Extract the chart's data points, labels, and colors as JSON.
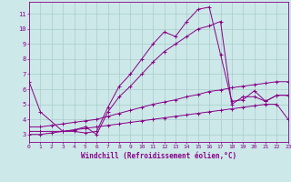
{
  "xlabel": "Windchill (Refroidissement éolien,°C)",
  "bg_color": "#cce8e8",
  "grid_color": "#aacccc",
  "line_color": "#880088",
  "xlim": [
    0,
    23
  ],
  "ylim": [
    2.5,
    11.8
  ],
  "xticks": [
    0,
    1,
    2,
    3,
    4,
    5,
    6,
    7,
    8,
    9,
    10,
    11,
    12,
    13,
    14,
    15,
    16,
    17,
    18,
    19,
    20,
    21,
    22,
    23
  ],
  "yticks": [
    3,
    4,
    5,
    6,
    7,
    8,
    9,
    10,
    11
  ],
  "lines": [
    {
      "x": [
        0,
        1,
        3,
        4,
        5,
        6,
        7,
        8,
        9,
        10,
        11,
        12,
        13,
        14,
        15,
        16,
        17,
        18,
        19,
        20,
        21,
        22,
        23
      ],
      "y": [
        6.5,
        4.5,
        3.2,
        3.2,
        3.1,
        3.2,
        4.8,
        6.2,
        7.0,
        8.0,
        9.0,
        9.8,
        9.5,
        10.5,
        11.3,
        11.45,
        8.3,
        5.2,
        5.3,
        5.9,
        5.2,
        5.6,
        5.6
      ]
    },
    {
      "x": [
        0,
        1,
        3,
        4,
        5,
        6,
        7,
        8,
        9,
        10,
        11,
        12,
        13,
        14,
        15,
        16,
        17,
        18,
        19,
        20,
        21,
        22,
        23
      ],
      "y": [
        3.2,
        3.2,
        3.2,
        3.3,
        3.5,
        3.0,
        4.5,
        5.5,
        6.2,
        7.0,
        7.8,
        8.5,
        9.0,
        9.5,
        10.0,
        10.2,
        10.5,
        5.0,
        5.5,
        5.5,
        5.2,
        5.6,
        5.6
      ]
    },
    {
      "x": [
        0,
        1,
        2,
        3,
        4,
        5,
        6,
        7,
        8,
        9,
        10,
        11,
        12,
        13,
        14,
        15,
        16,
        17,
        18,
        19,
        20,
        21,
        22,
        23
      ],
      "y": [
        3.5,
        3.5,
        3.6,
        3.7,
        3.8,
        3.9,
        4.0,
        4.2,
        4.4,
        4.6,
        4.8,
        5.0,
        5.15,
        5.3,
        5.5,
        5.65,
        5.85,
        5.95,
        6.1,
        6.2,
        6.3,
        6.4,
        6.5,
        6.5
      ]
    },
    {
      "x": [
        0,
        1,
        2,
        3,
        4,
        5,
        6,
        7,
        8,
        9,
        10,
        11,
        12,
        13,
        14,
        15,
        16,
        17,
        18,
        19,
        20,
        21,
        22,
        23
      ],
      "y": [
        3.0,
        3.0,
        3.1,
        3.2,
        3.3,
        3.4,
        3.5,
        3.6,
        3.7,
        3.8,
        3.9,
        4.0,
        4.1,
        4.2,
        4.3,
        4.4,
        4.5,
        4.6,
        4.7,
        4.8,
        4.9,
        5.0,
        5.0,
        4.0
      ]
    }
  ]
}
